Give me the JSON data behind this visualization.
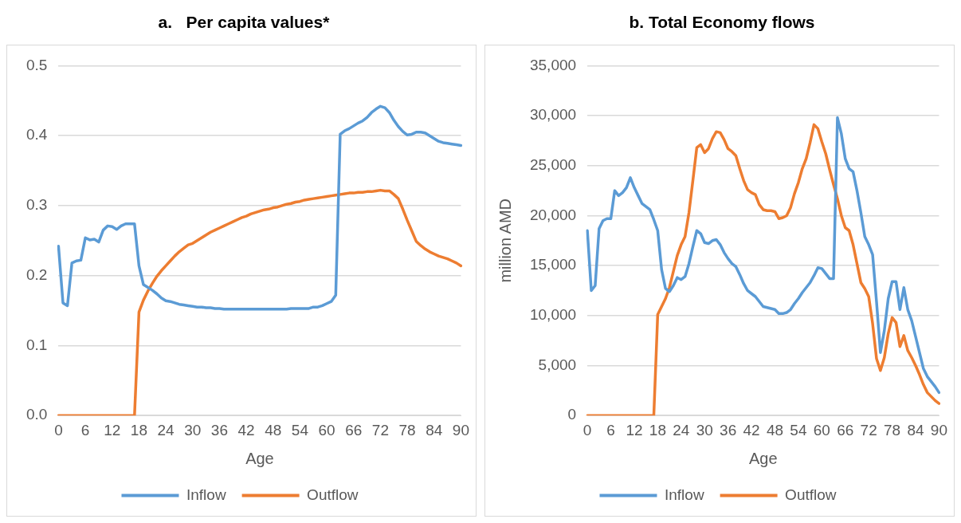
{
  "chart_data": [
    {
      "type": "line",
      "title": "a.   Per capita values*",
      "xlabel": "Age",
      "categories": [
        "0",
        null,
        null,
        null,
        null,
        null,
        "6",
        null,
        null,
        null,
        null,
        null,
        "12",
        null,
        null,
        null,
        null,
        null,
        "18",
        null,
        null,
        null,
        null,
        null,
        "24",
        null,
        null,
        null,
        null,
        null,
        "30",
        null,
        null,
        null,
        null,
        null,
        "36",
        null,
        null,
        null,
        null,
        null,
        "42",
        null,
        null,
        null,
        null,
        null,
        "48",
        null,
        null,
        null,
        null,
        null,
        "54",
        null,
        null,
        null,
        null,
        null,
        "60",
        null,
        null,
        null,
        null,
        null,
        "66",
        null,
        null,
        null,
        null,
        null,
        "72",
        null,
        null,
        null,
        null,
        null,
        "78",
        null,
        null,
        null,
        null,
        null,
        "84",
        null,
        null,
        null,
        null,
        null,
        "90"
      ],
      "series": [
        {
          "name": "Inflow",
          "color": "#5b9bd5",
          "values": [
            0.242,
            0.161,
            0.157,
            0.218,
            0.221,
            0.222,
            0.254,
            0.251,
            0.252,
            0.248,
            0.265,
            0.271,
            0.27,
            0.266,
            0.271,
            0.274,
            0.274,
            0.274,
            0.214,
            0.187,
            0.183,
            0.179,
            0.174,
            0.168,
            0.164,
            0.163,
            0.161,
            0.159,
            0.158,
            0.157,
            0.156,
            0.155,
            0.155,
            0.154,
            0.154,
            0.153,
            0.153,
            0.152,
            0.152,
            0.152,
            0.152,
            0.152,
            0.152,
            0.152,
            0.152,
            0.152,
            0.152,
            0.152,
            0.152,
            0.152,
            0.152,
            0.152,
            0.153,
            0.153,
            0.153,
            0.153,
            0.153,
            0.155,
            0.155,
            0.157,
            0.16,
            0.163,
            0.172,
            0.402,
            0.407,
            0.41,
            0.414,
            0.418,
            0.421,
            0.426,
            0.433,
            0.438,
            0.442,
            0.44,
            0.433,
            0.422,
            0.413,
            0.406,
            0.401,
            0.402,
            0.405,
            0.405,
            0.404,
            0.4,
            0.396,
            0.392,
            0.39,
            0.389,
            0.388,
            0.387,
            0.386
          ]
        },
        {
          "name": "Outflow",
          "color": "#ed7d31",
          "values": [
            0,
            0,
            0,
            0,
            0,
            0,
            0,
            0,
            0,
            0,
            0,
            0,
            0,
            0,
            0,
            0,
            0,
            0,
            0.148,
            0.165,
            0.178,
            0.189,
            0.199,
            0.207,
            0.214,
            0.221,
            0.228,
            0.234,
            0.239,
            0.244,
            0.246,
            0.25,
            0.254,
            0.258,
            0.262,
            0.265,
            0.268,
            0.271,
            0.274,
            0.277,
            0.28,
            0.283,
            0.285,
            0.288,
            0.29,
            0.292,
            0.294,
            0.295,
            0.297,
            0.298,
            0.3,
            0.302,
            0.303,
            0.305,
            0.306,
            0.308,
            0.309,
            0.31,
            0.311,
            0.312,
            0.313,
            0.314,
            0.315,
            0.316,
            0.317,
            0.318,
            0.318,
            0.319,
            0.319,
            0.32,
            0.32,
            0.321,
            0.322,
            0.321,
            0.321,
            0.316,
            0.31,
            0.295,
            0.279,
            0.264,
            0.249,
            0.243,
            0.238,
            0.234,
            0.231,
            0.228,
            0.226,
            0.224,
            0.221,
            0.218,
            0.214
          ]
        }
      ],
      "ylim": [
        0,
        0.5
      ],
      "yticks": [
        {
          "value": 0,
          "label": "0.0"
        },
        {
          "value": 0.1,
          "label": "0.1"
        },
        {
          "value": 0.2,
          "label": "0.2"
        },
        {
          "value": 0.3,
          "label": "0.3"
        },
        {
          "value": 0.4,
          "label": "0.4"
        },
        {
          "value": 0.5,
          "label": "0.5"
        }
      ],
      "grid": "y",
      "legend": "bottom",
      "marker": "none",
      "line_style": "solid"
    },
    {
      "type": "line",
      "title": "b. Total Economy flows",
      "xlabel": "Age",
      "ylabel": "million AMD",
      "categories": [
        "0",
        null,
        null,
        null,
        null,
        null,
        "6",
        null,
        null,
        null,
        null,
        null,
        "12",
        null,
        null,
        null,
        null,
        null,
        "18",
        null,
        null,
        null,
        null,
        null,
        "24",
        null,
        null,
        null,
        null,
        null,
        "30",
        null,
        null,
        null,
        null,
        null,
        "36",
        null,
        null,
        null,
        null,
        null,
        "42",
        null,
        null,
        null,
        null,
        null,
        "48",
        null,
        null,
        null,
        null,
        null,
        "54",
        null,
        null,
        null,
        null,
        null,
        "60",
        null,
        null,
        null,
        null,
        null,
        "66",
        null,
        null,
        null,
        null,
        null,
        "72",
        null,
        null,
        null,
        null,
        null,
        "78",
        null,
        null,
        null,
        null,
        null,
        "84",
        null,
        null,
        null,
        null,
        null,
        "90"
      ],
      "series": [
        {
          "name": "Inflow",
          "color": "#5b9bd5",
          "values": [
            18500,
            12500,
            13000,
            18700,
            19500,
            19700,
            19700,
            22500,
            22000,
            22300,
            22800,
            23800,
            22800,
            22000,
            21200,
            20900,
            20600,
            19600,
            18500,
            14600,
            12700,
            12400,
            13000,
            13800,
            13600,
            13900,
            15200,
            16900,
            18500,
            18200,
            17300,
            17200,
            17500,
            17600,
            17100,
            16300,
            15700,
            15200,
            14900,
            14100,
            13200,
            12500,
            12200,
            11900,
            11400,
            10900,
            10800,
            10700,
            10600,
            10200,
            10200,
            10300,
            10600,
            11200,
            11700,
            12300,
            12800,
            13300,
            14000,
            14800,
            14700,
            14200,
            13700,
            13700,
            29800,
            28200,
            25700,
            24700,
            24400,
            22500,
            20300,
            17900,
            17100,
            16100,
            11400,
            6300,
            8500,
            11700,
            13400,
            13400,
            10600,
            12800,
            10600,
            9500,
            7900,
            6300,
            4700,
            3900,
            3400,
            2900,
            2300
          ]
        },
        {
          "name": "Outflow",
          "color": "#ed7d31",
          "values": [
            0,
            0,
            0,
            0,
            0,
            0,
            0,
            0,
            0,
            0,
            0,
            0,
            0,
            0,
            0,
            0,
            0,
            0,
            10100,
            10900,
            11700,
            12800,
            14400,
            16000,
            17100,
            17900,
            20300,
            23500,
            26800,
            27100,
            26300,
            26700,
            27700,
            28400,
            28300,
            27600,
            26700,
            26400,
            26000,
            24700,
            23500,
            22600,
            22300,
            22100,
            21100,
            20600,
            20500,
            20500,
            20400,
            19700,
            19800,
            20000,
            20800,
            22200,
            23300,
            24700,
            25700,
            27300,
            29100,
            28700,
            27400,
            26200,
            24600,
            23100,
            21700,
            20000,
            18800,
            18500,
            17100,
            15200,
            13300,
            12700,
            11900,
            9200,
            5700,
            4500,
            5800,
            8200,
            9800,
            9300,
            6900,
            8000,
            6500,
            5800,
            5000,
            4100,
            3100,
            2300,
            1900,
            1500,
            1200
          ]
        }
      ],
      "ylim": [
        0,
        35000
      ],
      "yticks": [
        0,
        {
          "value": 5000,
          "label": "5,000"
        },
        {
          "value": 10000,
          "label": "10,000"
        },
        {
          "value": 15000,
          "label": "15,000"
        },
        {
          "value": 20000,
          "label": "20,000"
        },
        {
          "value": 25000,
          "label": "25,000"
        },
        {
          "value": 30000,
          "label": "30,000"
        },
        {
          "value": 35000,
          "label": "35,000"
        }
      ],
      "grid": "y",
      "legend": "bottom",
      "marker": "none",
      "line_style": "solid"
    }
  ]
}
